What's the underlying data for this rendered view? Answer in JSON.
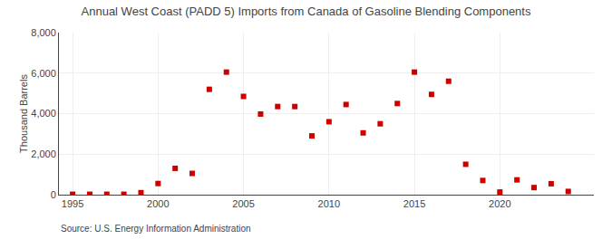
{
  "chart_data": {
    "type": "scatter",
    "title": "Annual West Coast (PADD 5) Imports from Canada of Gasoline Blending Components",
    "ylabel": "Thousand Barrels",
    "annotations": [
      "Source: U.S. Energy Information Administration"
    ],
    "x": [
      1995,
      1996,
      1997,
      1998,
      1999,
      2000,
      2001,
      2002,
      2003,
      2004,
      2005,
      2006,
      2007,
      2008,
      2009,
      2010,
      2011,
      2012,
      2013,
      2014,
      2015,
      2016,
      2017,
      2018,
      2019,
      2020,
      2021,
      2022,
      2023,
      2024
    ],
    "values": [
      20,
      20,
      20,
      20,
      100,
      550,
      1300,
      1050,
      5200,
      6050,
      4850,
      3980,
      4350,
      4350,
      2900,
      3600,
      4450,
      3050,
      3500,
      4500,
      6050,
      4950,
      5600,
      1500,
      700,
      130,
      730,
      350,
      540,
      160
    ],
    "color": "#cc0000",
    "marker": "square",
    "xlim": [
      1994.2,
      2025.5
    ],
    "ylim": [
      0,
      8000
    ],
    "xticks": [
      1995,
      2000,
      2005,
      2010,
      2015,
      2020
    ],
    "yticks": [
      0,
      {
        "value": 2000,
        "label": "2,000"
      },
      {
        "value": 4000,
        "label": "4,000"
      },
      {
        "value": 6000,
        "label": "6,000"
      },
      {
        "value": 8000,
        "label": "8,000"
      }
    ],
    "grid": true
  }
}
